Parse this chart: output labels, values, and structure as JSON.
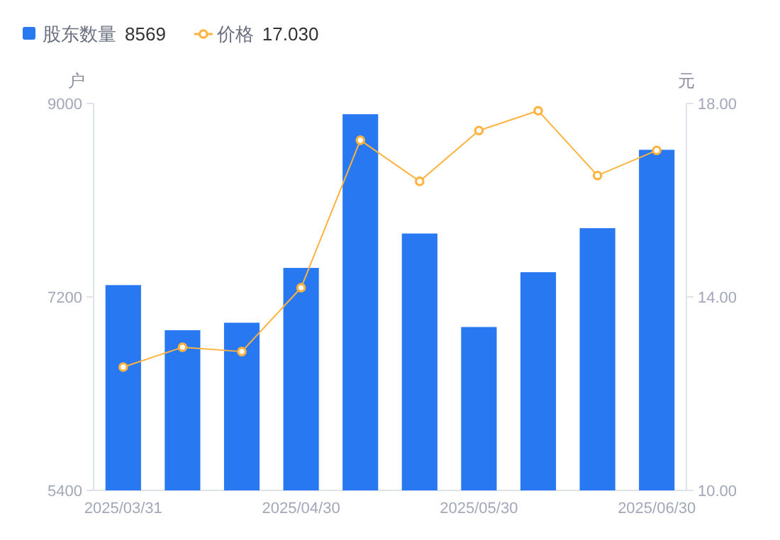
{
  "chart_data": {
    "type": "bar",
    "categories": [
      "2025/03/31",
      null,
      null,
      "2025/04/30",
      null,
      null,
      "2025/05/30",
      null,
      null,
      "2025/06/30"
    ],
    "series": [
      {
        "name": "股东数量",
        "color": "#2878f2",
        "values": [
          7310,
          6890,
          6960,
          7470,
          8900,
          7790,
          6920,
          7430,
          7840,
          8569
        ]
      },
      {
        "name": "价格",
        "type": "line",
        "axis": "y2",
        "color": "#ffb33f",
        "marker": "circle",
        "values": [
          12.55,
          12.96,
          12.87,
          14.19,
          17.24,
          16.39,
          17.44,
          17.85,
          16.51,
          17.03
        ]
      }
    ],
    "annotations": [
      "8569",
      "17.030"
    ],
    "ylabel": "户",
    "y2label": "元",
    "ylim": [
      5400,
      9000
    ],
    "yticks": [
      5400,
      7200,
      9000
    ],
    "y2lim": [
      10,
      18
    ],
    "y2ticks": [
      {
        "value": 10,
        "label": "10.00"
      },
      {
        "value": 14,
        "label": "14.00"
      },
      {
        "value": 18,
        "label": "18.00"
      }
    ],
    "legend": "top left",
    "grid": false
  }
}
